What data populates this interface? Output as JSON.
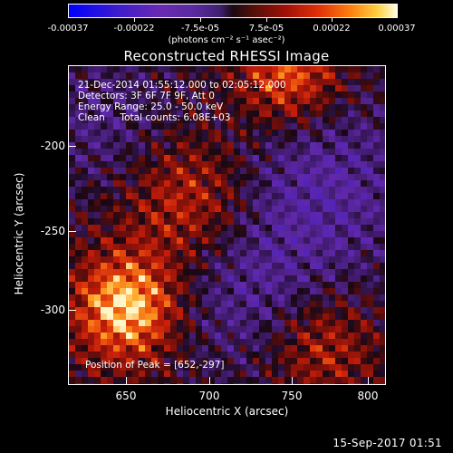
{
  "colorbar": {
    "ticks": [
      "-0.00037",
      "-0.00022",
      "-7.5e-05",
      "7.5e-05",
      "0.00022",
      "0.00037"
    ],
    "units": "(photons cm⁻² s⁻¹ asec⁻²)"
  },
  "title": "Reconstructed RHESSI Image",
  "overlay": {
    "time_range": "21-Dec-2014 01:55:12.000 to 02:05:12.000",
    "detectors": "Detectors: 3F 6F 7F 9F, Att 0",
    "energy": "Energy Range: 25.0 - 50.0 keV",
    "clean": "Clean     Total counts: 6.08E+03",
    "peak": "Position of Peak = [652,-297]"
  },
  "axes": {
    "xlabel": "Heliocentric X (arcsec)",
    "ylabel": "Heliocentric Y (arcsec)",
    "xticks": [
      "650",
      "700",
      "750",
      "800"
    ],
    "yticks": [
      "-200",
      "-250",
      "-300"
    ]
  },
  "image_data": {
    "xrange": [
      617,
      808
    ],
    "yrange": [
      -342,
      -155
    ],
    "peak": [
      652,
      -297
    ],
    "sources": [
      {
        "x": 652,
        "y": -297,
        "amp": 1.0,
        "w": 22
      },
      {
        "x": 750,
        "y": -160,
        "amp": 0.72,
        "w": 22
      },
      {
        "x": 690,
        "y": -235,
        "amp": 0.55,
        "w": 28
      },
      {
        "x": 770,
        "y": -320,
        "amp": 0.45,
        "w": 22
      },
      {
        "x": 770,
        "y": -225,
        "amp": -0.45,
        "w": 40
      },
      {
        "x": 720,
        "y": -285,
        "amp": -0.35,
        "w": 35
      },
      {
        "x": 640,
        "y": -190,
        "amp": -0.3,
        "w": 30
      }
    ]
  },
  "footer": {
    "timestamp": "15-Sep-2017 01:51"
  }
}
